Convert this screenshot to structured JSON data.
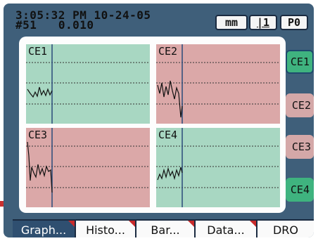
{
  "status": {
    "time": "3:05:32 PM",
    "date": "10-24-05",
    "sample": "#51",
    "value": "0.010"
  },
  "header_buttons": {
    "units": "mm",
    "lcs": "|1",
    "part": "P0"
  },
  "panels": [
    {
      "label": "CE1",
      "state": "pass",
      "color": "#a8d7c2"
    },
    {
      "label": "CE2",
      "state": "fail",
      "color": "#dba8a8"
    },
    {
      "label": "CE3",
      "state": "fail",
      "color": "#dba8a8"
    },
    {
      "label": "CE4",
      "state": "pass",
      "color": "#a8d7c2"
    }
  ],
  "side_buttons": [
    {
      "label": "CE1",
      "selected": true,
      "color": "#3fb37f"
    },
    {
      "label": "CE2",
      "selected": false,
      "color": "#d4a8a8"
    },
    {
      "label": "CE3",
      "selected": false,
      "color": "#d4a8a8"
    },
    {
      "label": "CE4",
      "selected": false,
      "color": "#3fb37f"
    }
  ],
  "tabs": [
    {
      "label": "Graph...",
      "active": true
    },
    {
      "label": "Histo...",
      "active": false
    },
    {
      "label": "Bar...",
      "active": false
    },
    {
      "label": "Data...",
      "active": false
    },
    {
      "label": "DRO",
      "active": false
    }
  ]
}
